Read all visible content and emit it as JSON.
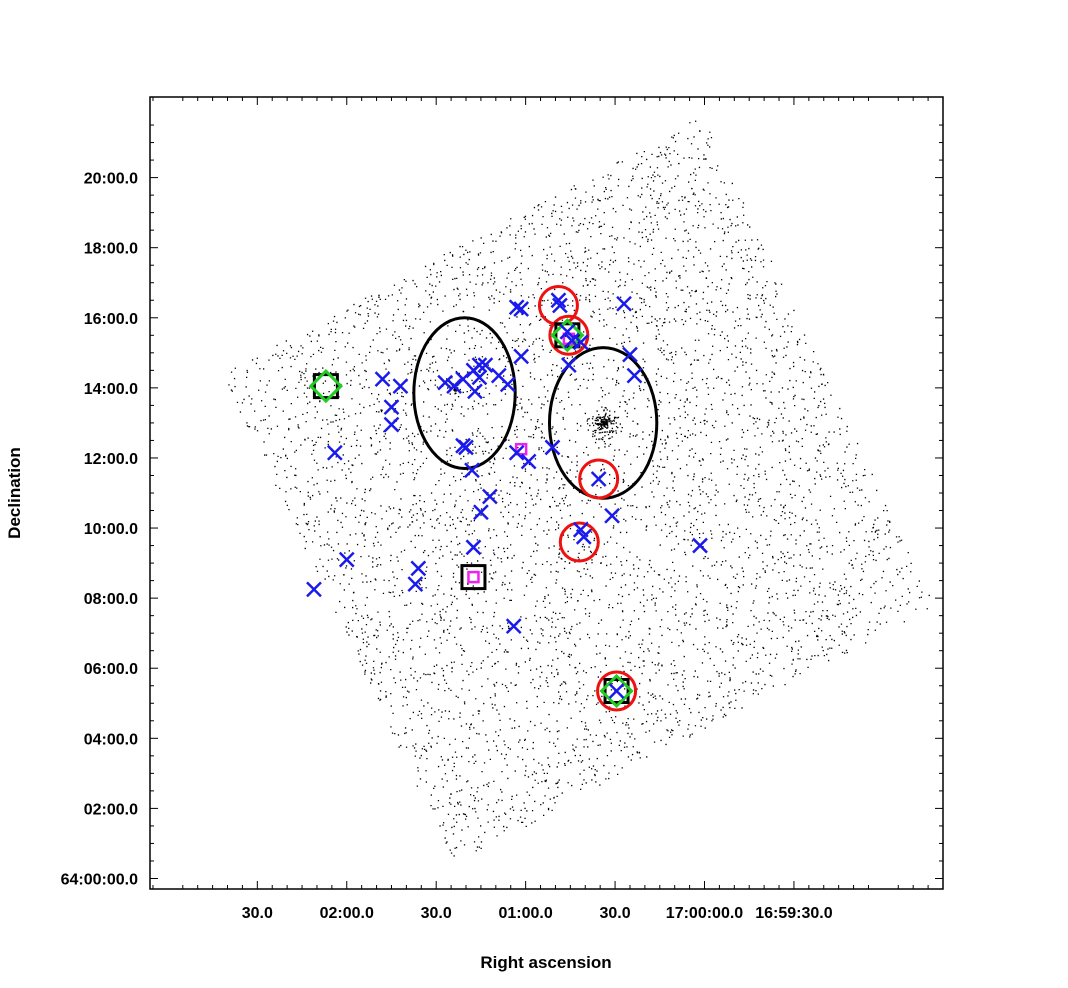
{
  "chart_data": {
    "type": "scatter",
    "xlabel": "Right ascension",
    "ylabel": "Declination",
    "x_unit": "arcsec of RA offset from 17:00:00.0",
    "y_unit": "arcmin of Dec offset from 64:00:00.0",
    "xlim": [
      186,
      -80
    ],
    "ylim": [
      -0.3,
      22.3
    ],
    "x_ticks": [
      {
        "value": 150,
        "label": "30.0"
      },
      {
        "value": 120,
        "label": "02:00.0"
      },
      {
        "value": 90,
        "label": "30.0"
      },
      {
        "value": 60,
        "label": "01:00.0"
      },
      {
        "value": 30,
        "label": "30.0"
      },
      {
        "value": 0,
        "label": "17:00:00.0"
      },
      {
        "value": -30,
        "label": "16:59:30.0"
      }
    ],
    "y_ticks": [
      {
        "value": 0,
        "label": "64:00:00.0"
      },
      {
        "value": 2,
        "label": "02:00.0"
      },
      {
        "value": 4,
        "label": "04:00.0"
      },
      {
        "value": 6,
        "label": "06:00.0"
      },
      {
        "value": 8,
        "label": "08:00.0"
      },
      {
        "value": 10,
        "label": "10:00.0"
      },
      {
        "value": 12,
        "label": "12:00.0"
      },
      {
        "value": 14,
        "label": "14:00.0"
      },
      {
        "value": 16,
        "label": "16:00.0"
      },
      {
        "value": 18,
        "label": "18:00.0"
      },
      {
        "value": 20,
        "label": "20:00.0"
      }
    ],
    "grid": false,
    "background_field": {
      "shape": "rotated-square",
      "corners": [
        [
          162,
          14.4
        ],
        [
          84,
          0.4
        ],
        [
          -77,
          7.8
        ],
        [
          1,
          21.8
        ]
      ],
      "dot_count": 5000,
      "color": "#000000"
    },
    "series": [
      {
        "marker": "ellipse",
        "color": "#000000",
        "values": [
          {
            "x": 80.5,
            "y": 13.85,
            "rx": 17,
            "ry": 2.15
          },
          {
            "x": 34,
            "y": 13.0,
            "rx": 18,
            "ry": 2.15
          }
        ]
      },
      {
        "marker": "circle",
        "color": "#ee1111",
        "values": [
          {
            "x": 49,
            "y": 16.35
          },
          {
            "x": 45.5,
            "y": 15.5
          },
          {
            "x": 35.5,
            "y": 11.4
          },
          {
            "x": 42,
            "y": 9.6
          },
          {
            "x": 29.5,
            "y": 5.35
          }
        ]
      },
      {
        "marker": "square",
        "color": "#000000",
        "values": [
          {
            "x": 127,
            "y": 14.05
          },
          {
            "x": 46,
            "y": 15.5
          },
          {
            "x": 29.5,
            "y": 5.35
          },
          {
            "x": 77.5,
            "y": 8.6
          }
        ]
      },
      {
        "marker": "diamond",
        "color": "#22cc22",
        "values": [
          {
            "x": 127,
            "y": 14.05
          },
          {
            "x": 46,
            "y": 15.5
          },
          {
            "x": 29.5,
            "y": 5.35
          }
        ]
      },
      {
        "marker": "small-square",
        "color": "#ee22ee",
        "values": [
          {
            "x": 77.5,
            "y": 8.6
          },
          {
            "x": 45.5,
            "y": 15.4
          },
          {
            "x": 61.5,
            "y": 12.25
          }
        ]
      },
      {
        "marker": "x",
        "color": "#1a1aee",
        "values": [
          {
            "x": 49,
            "y": 16.5
          },
          {
            "x": 48.5,
            "y": 16.35
          },
          {
            "x": 63,
            "y": 16.3
          },
          {
            "x": 61.5,
            "y": 16.25
          },
          {
            "x": 27,
            "y": 16.4
          },
          {
            "x": 46,
            "y": 15.6
          },
          {
            "x": 44.5,
            "y": 15.35
          },
          {
            "x": 41.5,
            "y": 15.3
          },
          {
            "x": 45.5,
            "y": 14.65
          },
          {
            "x": 25,
            "y": 14.95
          },
          {
            "x": 23.5,
            "y": 14.35
          },
          {
            "x": 61.5,
            "y": 14.9
          },
          {
            "x": 102,
            "y": 14.05
          },
          {
            "x": 108,
            "y": 14.25
          },
          {
            "x": 87,
            "y": 14.15
          },
          {
            "x": 84,
            "y": 14.05
          },
          {
            "x": 81,
            "y": 14.25
          },
          {
            "x": 77.5,
            "y": 14.5
          },
          {
            "x": 75.5,
            "y": 14.65
          },
          {
            "x": 73.5,
            "y": 14.65
          },
          {
            "x": 75.5,
            "y": 14.3
          },
          {
            "x": 69,
            "y": 14.35
          },
          {
            "x": 66,
            "y": 14.1
          },
          {
            "x": 77,
            "y": 13.9
          },
          {
            "x": 105,
            "y": 13.45
          },
          {
            "x": 105,
            "y": 12.95
          },
          {
            "x": 81,
            "y": 12.35
          },
          {
            "x": 80,
            "y": 12.3
          },
          {
            "x": 78,
            "y": 11.65
          },
          {
            "x": 63,
            "y": 12.15
          },
          {
            "x": 59,
            "y": 11.9
          },
          {
            "x": 51,
            "y": 12.3
          },
          {
            "x": 124,
            "y": 12.15
          },
          {
            "x": 72,
            "y": 10.9
          },
          {
            "x": 75,
            "y": 10.45
          },
          {
            "x": 35.5,
            "y": 11.4
          },
          {
            "x": 41.5,
            "y": 9.95
          },
          {
            "x": 40.5,
            "y": 9.75
          },
          {
            "x": 31,
            "y": 10.35
          },
          {
            "x": 1.5,
            "y": 9.5
          },
          {
            "x": 77.5,
            "y": 9.45
          },
          {
            "x": 96,
            "y": 8.85
          },
          {
            "x": 97,
            "y": 8.4
          },
          {
            "x": 120,
            "y": 9.1
          },
          {
            "x": 131,
            "y": 8.25
          },
          {
            "x": 64,
            "y": 7.2
          },
          {
            "x": 29.5,
            "y": 5.35
          }
        ]
      }
    ]
  }
}
